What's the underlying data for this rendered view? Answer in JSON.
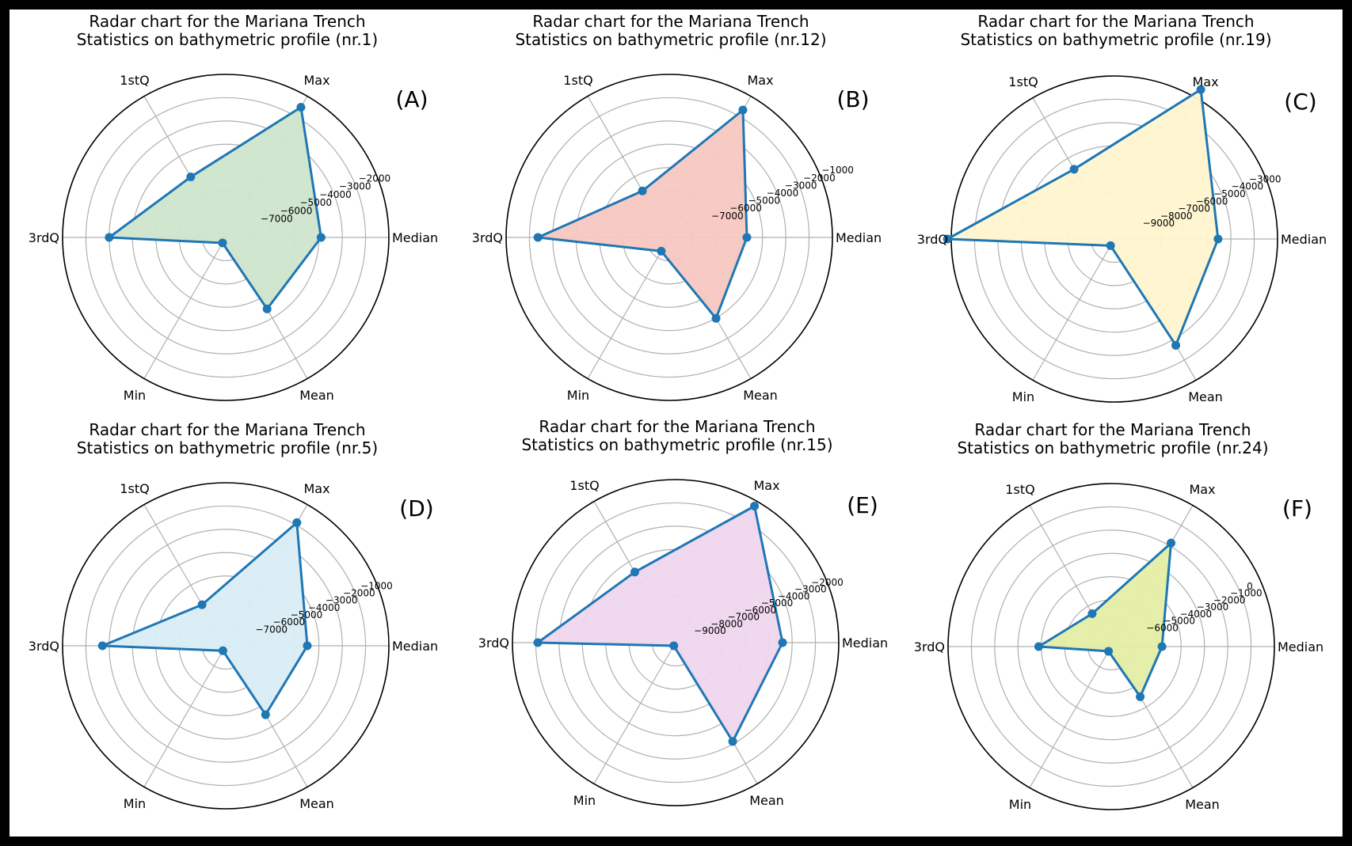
{
  "border_color": "#000000",
  "line_color": "#1f77b4",
  "grid_color": "#b0b0b0",
  "chart_data": [
    {
      "type": "radar",
      "panel": "(A)",
      "title": [
        "Radar chart for the Mariana Trench",
        "Statistics on bathymetric profile (nr.1)"
      ],
      "axes": [
        "Median",
        "Max",
        "1stQ",
        "3rdQ",
        "Min",
        "Mean"
      ],
      "values": [
        -4200,
        -1600,
        -5400,
        -3200,
        -8400,
        -4800
      ],
      "rlim": [
        -8700,
        -1000
      ],
      "ticks": [
        -7000,
        -6000,
        -5000,
        -4000,
        -3000,
        -2000
      ],
      "fill": "#cfe5cc",
      "grid": true
    },
    {
      "type": "radar",
      "panel": "(B)",
      "title": [
        "Radar chart for the Mariana Trench",
        "Statistics on bathymetric profile (nr.12)"
      ],
      "axes": [
        "Median",
        "Max",
        "1stQ",
        "3rdQ",
        "Min",
        "Mean"
      ],
      "values": [
        -5300,
        -1800,
        -6500,
        -2600,
        -8400,
        -4500
      ],
      "rlim": [
        -9200,
        -1000
      ],
      "ticks": [
        -7000,
        -6000,
        -5000,
        -4000,
        -3000,
        -2000,
        -1000
      ],
      "fill": "#f7c8c1",
      "grid": true
    },
    {
      "type": "radar",
      "panel": "(C)",
      "title": [
        "Radar chart for the Mariana Trench",
        "Statistics on bathymetric profile (nr.19)"
      ],
      "axes": [
        "Median",
        "Max",
        "1stQ",
        "3rdQ",
        "Min",
        "Mean"
      ],
      "values": [
        -5100,
        -1500,
        -6300,
        -1800,
        -10100,
        -4100
      ],
      "rlim": [
        -10500,
        -2000
      ],
      "ticks": [
        -9000,
        -8000,
        -7000,
        -6000,
        -5000,
        -4000,
        -3000
      ],
      "fill": "#fff6cf",
      "grid": true
    },
    {
      "type": "radar",
      "panel": "(D)",
      "title": [
        "Radar chart for the Mariana Trench",
        "Statistics on bathymetric profile (nr.5)"
      ],
      "axes": [
        "Median",
        "Max",
        "1stQ",
        "3rdQ",
        "Min",
        "Mean"
      ],
      "values": [
        -4300,
        -1100,
        -6100,
        -2100,
        -8300,
        -4400
      ],
      "rlim": [
        -8600,
        0
      ],
      "ticks": [
        -7000,
        -6000,
        -5000,
        -4000,
        -3000,
        -2000,
        -1000
      ],
      "fill": "#d9edf5",
      "grid": true
    },
    {
      "type": "radar",
      "panel": "(E)",
      "title": [
        "Radar chart for the Mariana Trench",
        "Statistics on bathymetric profile (nr.15)"
      ],
      "axes": [
        "Median",
        "Max",
        "1stQ",
        "3rdQ",
        "Min",
        "Mean"
      ],
      "values": [
        -4100,
        -1300,
        -5500,
        -2400,
        -9800,
        -3700
      ],
      "rlim": [
        -10000,
        -1000
      ],
      "ticks": [
        -9000,
        -8000,
        -7000,
        -6000,
        -5000,
        -4000,
        -3000,
        -2000
      ],
      "fill": "#efd6ee",
      "grid": true
    },
    {
      "type": "radar",
      "panel": "(F)",
      "title": [
        "Radar chart for the Mariana Trench",
        "Statistics on bathymetric profile (nr.24)"
      ],
      "axes": [
        "Median",
        "Max",
        "1stQ",
        "3rdQ",
        "Min",
        "Mean"
      ],
      "values": [
        -5200,
        -1400,
        -5900,
        -4000,
        -7700,
        -4800
      ],
      "rlim": [
        -8000,
        1000
      ],
      "ticks": [
        -6000,
        -5000,
        -4000,
        -3000,
        -2000,
        -1000,
        0
      ],
      "fill": "#e4eea5",
      "grid": true
    }
  ]
}
